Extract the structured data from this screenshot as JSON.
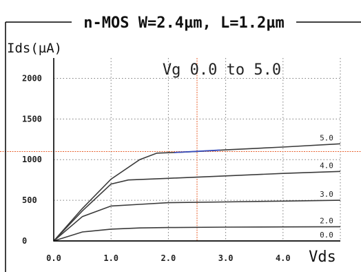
{
  "chart_data": {
    "type": "line",
    "title": "n-MOS W=2.4µm, L=1.2µm",
    "ylabel": "Ids(µA)",
    "xlabel": "Vds",
    "annotation": "Vg 0.0 to 5.0",
    "xlim": [
      0,
      5
    ],
    "ylim": [
      0,
      2250
    ],
    "x_ticks": [
      "0.0",
      "1.0",
      "2.0",
      "3.0",
      "4.0"
    ],
    "y_ticks": [
      "0",
      "500",
      "1000",
      "1500",
      "2000"
    ],
    "grid": true,
    "cursor": {
      "x": 2.5,
      "y": 1100
    },
    "colors": {
      "frame": "#000000",
      "curve": "#3a3a3a",
      "highlight": "#3a4fbf",
      "cursor": "#e8602c",
      "grid": "#7a7a7a"
    },
    "series": [
      {
        "name": "5.0",
        "x": [
          0,
          0.5,
          1.0,
          1.5,
          1.8,
          2.2,
          2.5,
          3.0,
          4.0,
          5.0
        ],
        "values": [
          0,
          400,
          760,
          1000,
          1080,
          1090,
          1100,
          1120,
          1155,
          1195
        ]
      },
      {
        "name": "4.0",
        "x": [
          0,
          0.5,
          1.0,
          1.3,
          2.0,
          3.0,
          4.0,
          5.0
        ],
        "values": [
          0,
          370,
          700,
          750,
          770,
          800,
          830,
          855
        ]
      },
      {
        "name": "3.0",
        "x": [
          0,
          0.5,
          1.0,
          1.5,
          2.0,
          3.0,
          4.0,
          5.0
        ],
        "values": [
          0,
          300,
          430,
          450,
          470,
          480,
          490,
          500
        ]
      },
      {
        "name": "2.0",
        "x": [
          0,
          0.5,
          1.0,
          1.5,
          2.0,
          3.0,
          4.0,
          5.0
        ],
        "values": [
          0,
          110,
          145,
          160,
          165,
          170,
          172,
          175
        ]
      },
      {
        "name": "0.0",
        "x": [
          0,
          5.0
        ],
        "values": [
          0,
          0
        ]
      }
    ]
  }
}
